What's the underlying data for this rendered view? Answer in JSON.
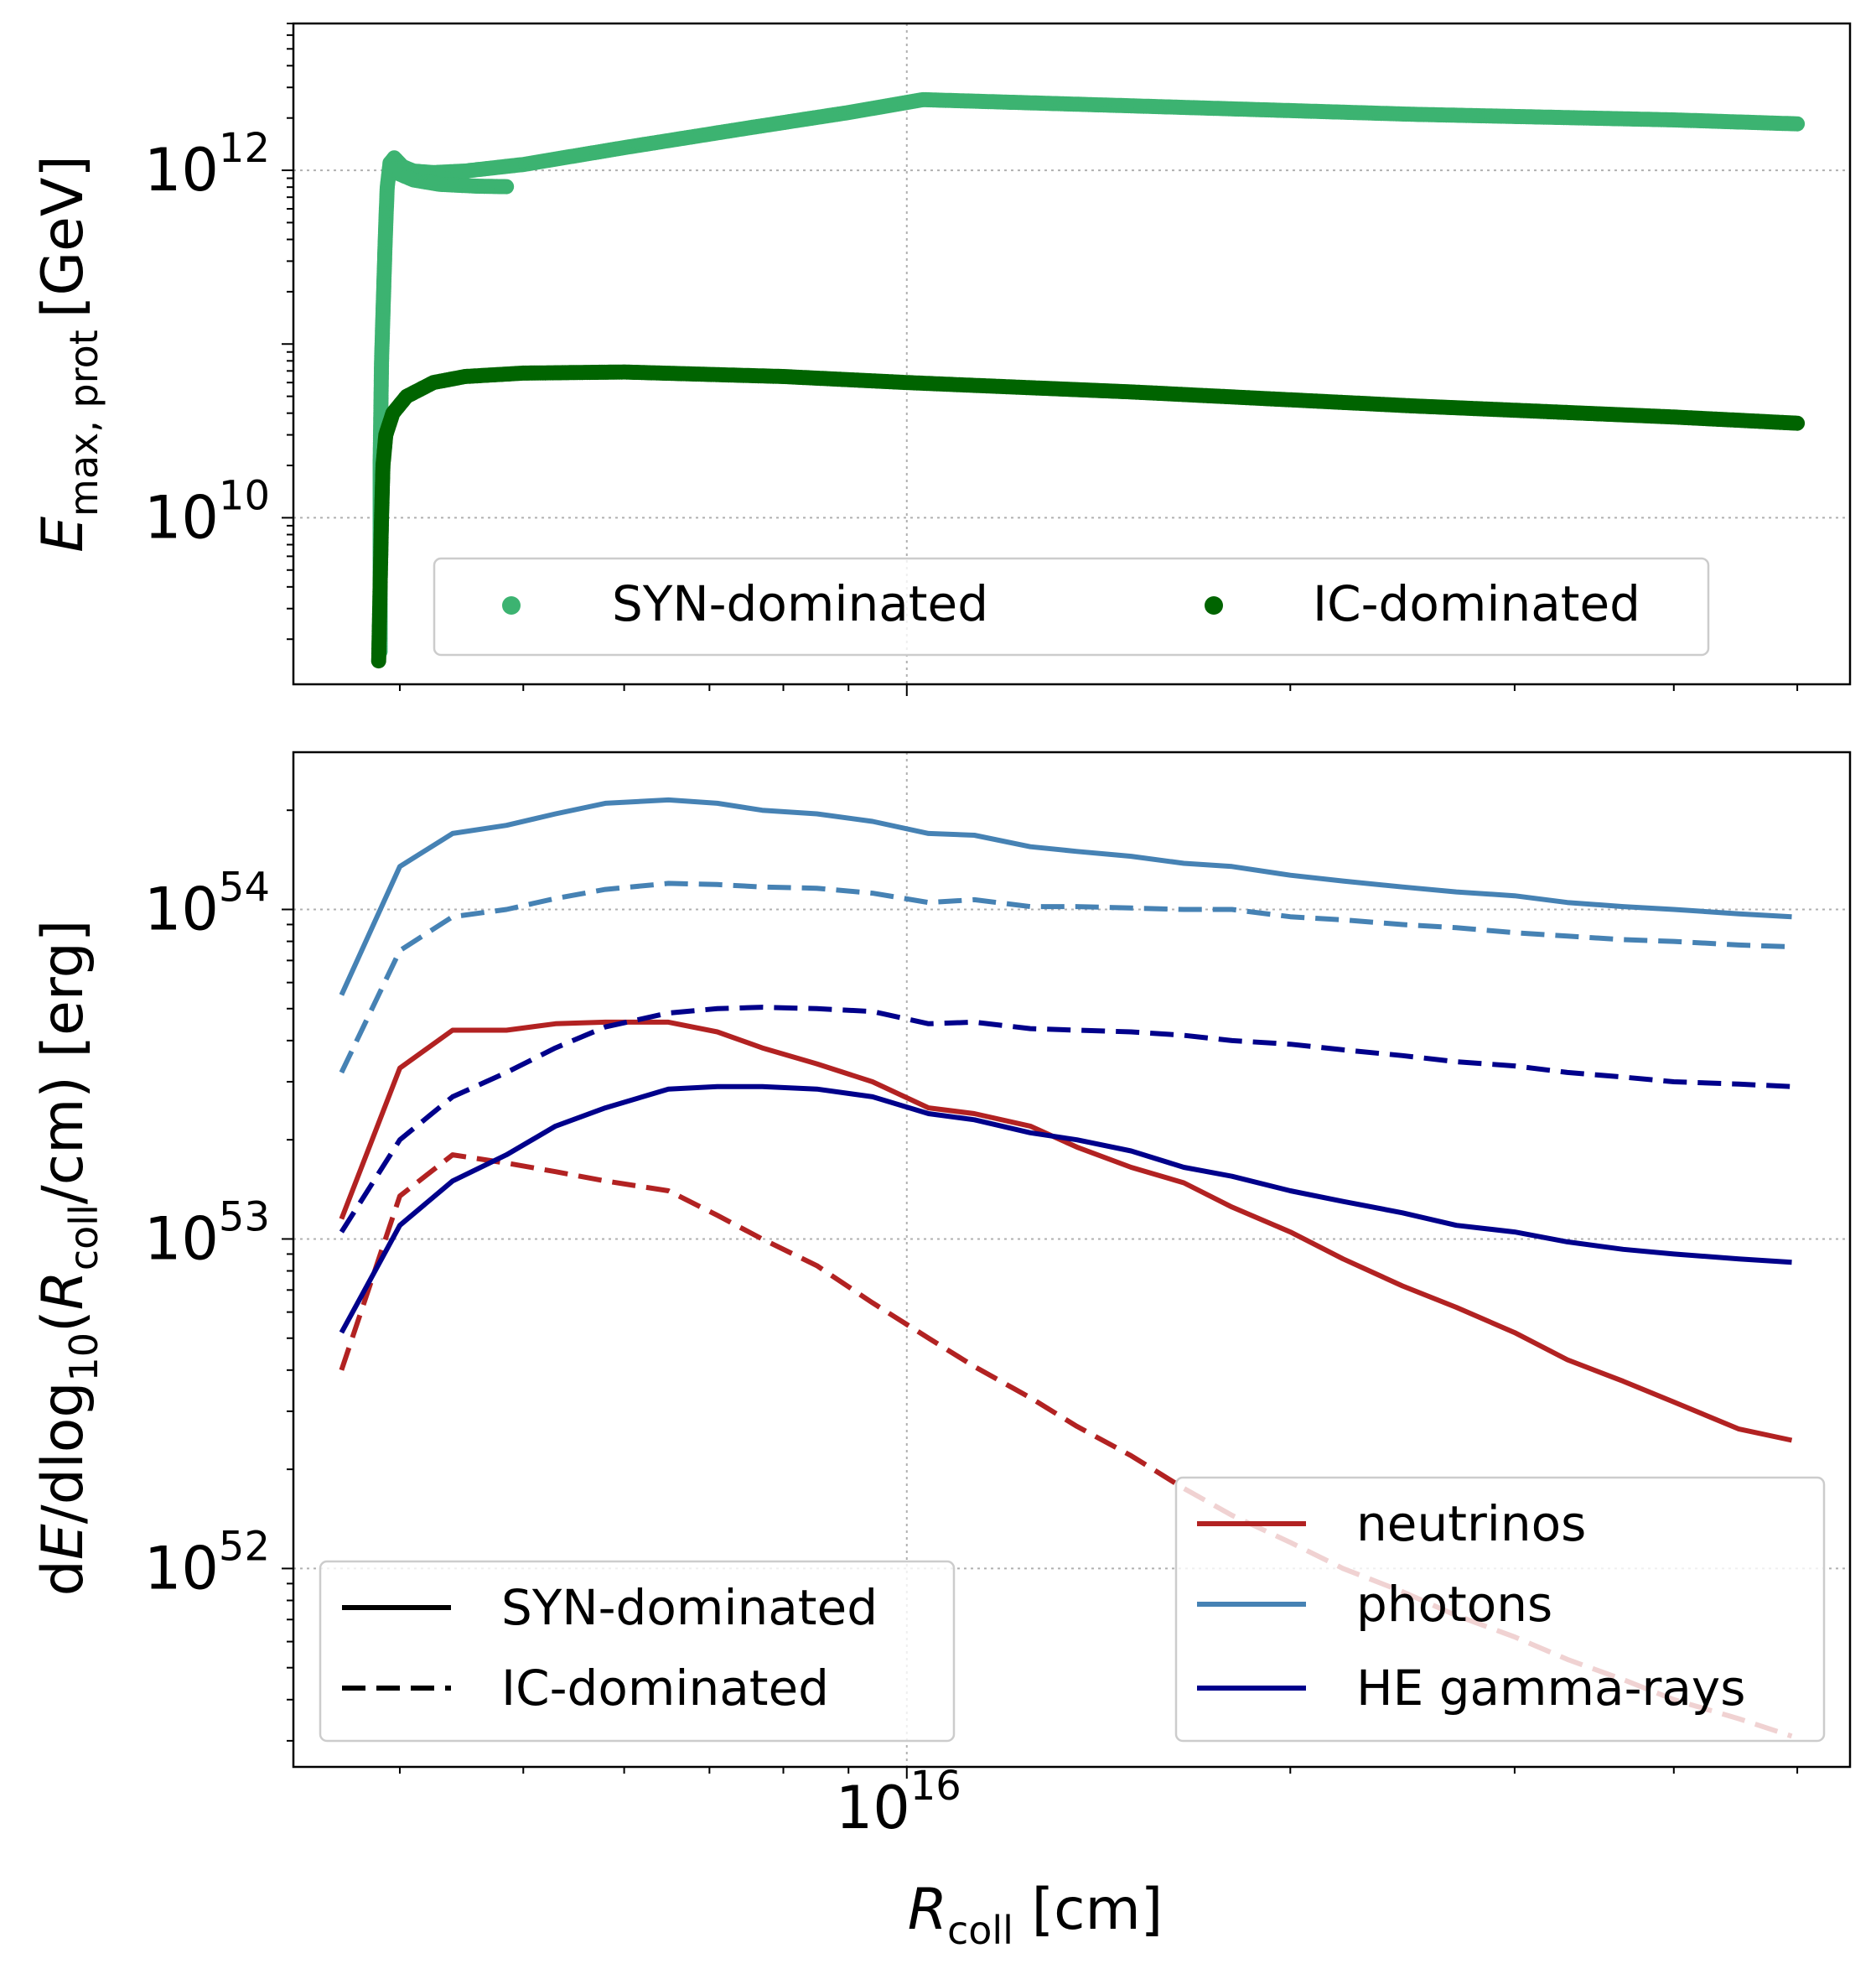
{
  "colors": {
    "syn_points": "#3cb371",
    "ic_points": "#006400",
    "neutrinos": "#b22222",
    "photons": "#4682b4",
    "he_gamma": "#00008b",
    "grid": "#b0b0b0"
  },
  "chart_data": [
    {
      "id": "top",
      "type": "scatter",
      "ylabel": "E_max,prot [GeV]",
      "xscale": "log",
      "yscale": "log",
      "xlim": [
        3300000000000000.0,
        5.5e+16
      ],
      "ylim": [
        1100000000.0,
        7000000000000.0
      ],
      "yticks": [
        {
          "value": 10000000000.0,
          "base": "10",
          "exp": "10"
        },
        {
          "value": 1000000000000.0,
          "base": "10",
          "exp": "12"
        }
      ],
      "grid": true,
      "legend": {
        "position": "bottom",
        "entries": [
          {
            "key": "syn",
            "label": "SYN-dominated"
          },
          {
            "key": "ic",
            "label": "IC-dominated"
          }
        ]
      },
      "series": [
        {
          "name": "SYN-dominated",
          "key": "syn",
          "segments": [
            [
              [
                3860000000000000.0,
                1700000000.0
              ],
              [
                3860000000000000.0,
                20000000000.0
              ],
              [
                3870000000000000.0,
                80000000000.0
              ],
              [
                3880000000000000.0,
                150000000000.0
              ],
              [
                3890000000000000.0,
                280000000000.0
              ],
              [
                3900000000000000.0,
                500000000000.0
              ],
              [
                3910000000000000.0,
                800000000000.0
              ],
              [
                3930000000000000.0,
                1100000000000.0
              ],
              [
                3960000000000000.0,
                1180000000000.0
              ],
              [
                4020000000000000.0,
                1050000000000.0
              ],
              [
                4100000000000000.0,
                990000000000.0
              ],
              [
                4250000000000000.0,
                970000000000.0
              ],
              [
                4500000000000000.0,
                990000000000.0
              ],
              [
                5000000000000000.0,
                1080000000000.0
              ],
              [
                6000000000000000.0,
                1350000000000.0
              ],
              [
                7500000000000000.0,
                1750000000000.0
              ],
              [
                9000000000000000.0,
                2150000000000.0
              ],
              [
                1.03e+16,
                2550000000000.0
              ],
              [
                1.5e+16,
                2350000000000.0
              ],
              [
                2.5e+16,
                2100000000000.0
              ],
              [
                4e+16,
                1950000000000.0
              ],
              [
                5e+16,
                1850000000000.0
              ]
            ],
            [
              [
                3930000000000000.0,
                1100000000000.0
              ],
              [
                4000000000000000.0,
                950000000000.0
              ],
              [
                4100000000000000.0,
                880000000000.0
              ],
              [
                4300000000000000.0,
                830000000000.0
              ],
              [
                4600000000000000.0,
                810000000000.0
              ],
              [
                4850000000000000.0,
                805000000000.0
              ]
            ]
          ]
        },
        {
          "name": "IC-dominated",
          "key": "ic",
          "segments": [
            [
              [
                3850000000000000.0,
                1500000000.0
              ],
              [
                3860000000000000.0,
                4000000000.0
              ],
              [
                3870000000000000.0,
                10000000000.0
              ],
              [
                3880000000000000.0,
                20000000000.0
              ],
              [
                3900000000000000.0,
                30000000000.0
              ],
              [
                3950000000000000.0,
                40000000000.0
              ],
              [
                4050000000000000.0,
                50000000000.0
              ],
              [
                4250000000000000.0,
                60000000000.0
              ],
              [
                4500000000000000.0,
                65000000000.0
              ],
              [
                5000000000000000.0,
                68000000000.0
              ],
              [
                6000000000000000.0,
                69000000000.0
              ],
              [
                8000000000000000.0,
                65000000000.0
              ],
              [
                1e+16,
                60000000000.0
              ],
              [
                1.5e+16,
                53000000000.0
              ],
              [
                2.5e+16,
                44000000000.0
              ],
              [
                4e+16,
                38000000000.0
              ],
              [
                5e+16,
                35000000000.0
              ]
            ]
          ]
        }
      ]
    },
    {
      "id": "bottom",
      "type": "line",
      "xlabel": "R_coll [cm]",
      "ylabel": "dE/dlog10(R_coll/cm) [erg]",
      "xscale": "log",
      "yscale": "log",
      "xlim": [
        3300000000000000.0,
        5.5e+16
      ],
      "ylim": [
        2.5e+51,
        3e+54
      ],
      "xticks": [
        {
          "value": 1e+16,
          "base": "10",
          "exp": "16"
        }
      ],
      "yticks": [
        {
          "value": 1e+52,
          "base": "10",
          "exp": "52"
        },
        {
          "value": 1e+53,
          "base": "10",
          "exp": "53"
        },
        {
          "value": 1e+54,
          "base": "10",
          "exp": "54"
        }
      ],
      "grid": true,
      "x": [
        3600000000000000.0,
        4000000000000000.0,
        4400000000000000.0,
        4850000000000000.0,
        5300000000000000.0,
        5800000000000000.0,
        6500000000000000.0,
        7100000000000000.0,
        7700000000000000.0,
        8500000000000000.0,
        9400000000000000.0,
        1.04e+16,
        1.13e+16,
        1.25e+16,
        1.36e+16,
        1.5e+16,
        1.65e+16,
        1.8e+16,
        2e+16,
        2.2e+16,
        2.45e+16,
        2.7e+16,
        3e+16,
        3.3e+16,
        3.65e+16,
        4e+16,
        4.5e+16,
        4.95e+16
      ],
      "series": [
        {
          "name": "neutrinos SYN-dominated",
          "color_key": "neutrinos",
          "dash": "solid",
          "values": [
            1.15e+53,
            3.3e+53,
            4.3e+53,
            4.3e+53,
            4.5e+53,
            4.55e+53,
            4.55e+53,
            4.25e+53,
            3.8e+53,
            3.4e+53,
            3e+53,
            2.5e+53,
            2.4e+53,
            2.2e+53,
            1.9e+53,
            1.65e+53,
            1.48e+53,
            1.25e+53,
            1.05e+53,
            8.7e+52,
            7.2e+52,
            6.2e+52,
            5.2e+52,
            4.3e+52,
            3.7e+52,
            3.2e+52,
            2.65e+52,
            2.45e+52
          ]
        },
        {
          "name": "neutrinos IC-dominated",
          "color_key": "neutrinos",
          "dash": "dashed",
          "values": [
            4e+52,
            1.35e+53,
            1.8e+53,
            1.7e+53,
            1.6e+53,
            1.5e+53,
            1.4e+53,
            1.18e+53,
            1e+53,
            8.3e+52,
            6.4e+52,
            5e+52,
            4.1e+52,
            3.3e+52,
            2.7e+52,
            2.2e+52,
            1.75e+52,
            1.45e+52,
            1.2e+52,
            1e+52,
            8.5e+51,
            7.2e+51,
            6.2e+51,
            5.3e+51,
            4.6e+51,
            4e+51,
            3.5e+51,
            3.1e+51
          ]
        },
        {
          "name": "photons SYN-dominated",
          "color_key": "photons",
          "dash": "solid",
          "values": [
            5.5e+53,
            1.35e+54,
            1.7e+54,
            1.8e+54,
            1.95e+54,
            2.1e+54,
            2.15e+54,
            2.1e+54,
            2e+54,
            1.95e+54,
            1.85e+54,
            1.7e+54,
            1.68e+54,
            1.55e+54,
            1.5e+54,
            1.45e+54,
            1.38e+54,
            1.35e+54,
            1.27e+54,
            1.22e+54,
            1.17e+54,
            1.13e+54,
            1.1e+54,
            1.05e+54,
            1.02e+54,
            1e+54,
            9.7e+53,
            9.5e+53
          ]
        },
        {
          "name": "photons IC-dominated",
          "color_key": "photons",
          "dash": "dashed",
          "values": [
            3.2e+53,
            7.5e+53,
            9.5e+53,
            1e+54,
            1.08e+54,
            1.15e+54,
            1.2e+54,
            1.19e+54,
            1.17e+54,
            1.16e+54,
            1.12e+54,
            1.05e+54,
            1.07e+54,
            1.02e+54,
            1.02e+54,
            1.01e+54,
            1e+54,
            1e+54,
            9.5e+53,
            9.3e+53,
            9e+53,
            8.8e+53,
            8.5e+53,
            8.3e+53,
            8.1e+53,
            8e+53,
            7.8e+53,
            7.7e+53
          ]
        },
        {
          "name": "HE gamma-rays SYN-dominated",
          "color_key": "he_gamma",
          "dash": "solid",
          "values": [
            5.2e+52,
            1.1e+53,
            1.5e+53,
            1.8e+53,
            2.2e+53,
            2.5e+53,
            2.85e+53,
            2.9e+53,
            2.9e+53,
            2.85e+53,
            2.7e+53,
            2.4e+53,
            2.3e+53,
            2.1e+53,
            2e+53,
            1.85e+53,
            1.65e+53,
            1.55e+53,
            1.4e+53,
            1.3e+53,
            1.2e+53,
            1.1e+53,
            1.05e+53,
            9.8e+52,
            9.3e+52,
            9e+52,
            8.7e+52,
            8.5e+52
          ]
        },
        {
          "name": "HE gamma-rays IC-dominated",
          "color_key": "he_gamma",
          "dash": "dashed",
          "values": [
            1.05e+53,
            2e+53,
            2.7e+53,
            3.2e+53,
            3.8e+53,
            4.4e+53,
            4.85e+53,
            5e+53,
            5.05e+53,
            5e+53,
            4.9e+53,
            4.5e+53,
            4.55e+53,
            4.35e+53,
            4.3e+53,
            4.25e+53,
            4.15e+53,
            4e+53,
            3.9e+53,
            3.75e+53,
            3.6e+53,
            3.45e+53,
            3.35e+53,
            3.2e+53,
            3.1e+53,
            3e+53,
            2.95e+53,
            2.9e+53
          ]
        }
      ],
      "legends": [
        {
          "position": "lower-left",
          "entries": [
            {
              "label": "SYN-dominated",
              "dash": "solid"
            },
            {
              "label": "IC-dominated",
              "dash": "dashed"
            }
          ]
        },
        {
          "position": "lower-right",
          "entries": [
            {
              "label": "neutrinos",
              "color_key": "neutrinos"
            },
            {
              "label": "photons",
              "color_key": "photons"
            },
            {
              "label": "HE gamma-rays",
              "color_key": "he_gamma"
            }
          ]
        }
      ]
    }
  ],
  "labels": {
    "top_ylabel_E": "E",
    "top_ylabel_sub": "max, prot",
    "top_ylabel_unit": "[GeV]",
    "bottom_ylabel_pre": "d",
    "bottom_ylabel_E": "E",
    "bottom_ylabel_dlog": "/dlog",
    "bottom_ylabel_10": "10",
    "bottom_ylabel_open": "(",
    "bottom_ylabel_R": "R",
    "bottom_ylabel_coll": "coll",
    "bottom_ylabel_tail": "/cm) [erg]",
    "xlabel_R": "R",
    "xlabel_coll": "coll",
    "xlabel_unit": " [cm]"
  }
}
